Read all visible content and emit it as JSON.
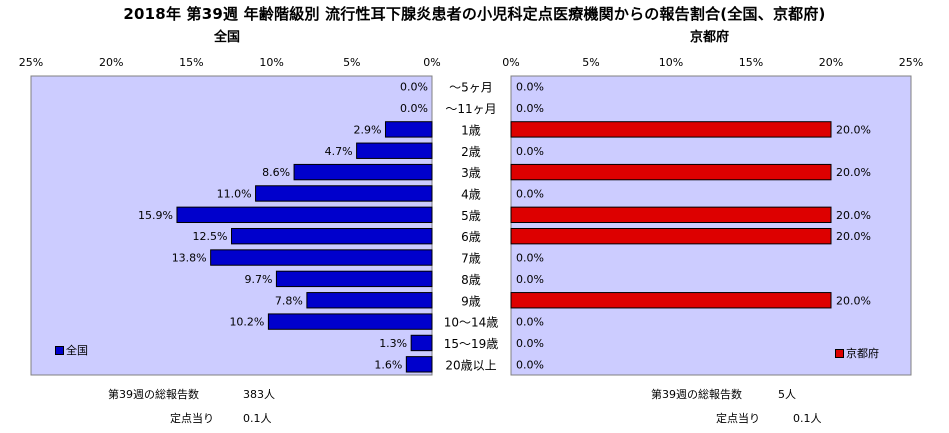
{
  "title": "2018年 第39週 年齢階級別 流行性耳下腺炎患者の小児科定点医療機関からの報告割合(全国、京都府)",
  "colors": {
    "national": "#0000cc",
    "kyoto": "#dd0000",
    "plot_bg": "#ccccff",
    "border": "#000000"
  },
  "chart_data": [
    {
      "type": "bar",
      "orientation": "horizontal",
      "direction": "right-to-left",
      "title": "全国",
      "categories": [
        "～5ヶ月",
        "～11ヶ月",
        "1歳",
        "2歳",
        "3歳",
        "4歳",
        "5歳",
        "6歳",
        "7歳",
        "8歳",
        "9歳",
        "10～14歳",
        "15～19歳",
        "20歳以上"
      ],
      "series": [
        {
          "name": "全国",
          "values": [
            0.0,
            0.0,
            2.9,
            4.7,
            8.6,
            11.0,
            15.9,
            12.5,
            13.8,
            9.7,
            7.8,
            10.2,
            1.3,
            1.6
          ],
          "labels": [
            "0.0%",
            "0.0%",
            "2.9%",
            "4.7%",
            "8.6%",
            "11.0%",
            "15.9%",
            "12.5%",
            "13.8%",
            "9.7%",
            "7.8%",
            "10.2%",
            "1.3%",
            "1.6%"
          ]
        }
      ],
      "xlim": [
        0,
        25
      ],
      "ticks": [
        "0%",
        "5%",
        "10%",
        "15%",
        "20%",
        "25%"
      ],
      "legend_position": "bottom-left",
      "grid": false
    },
    {
      "type": "bar",
      "orientation": "horizontal",
      "direction": "left-to-right",
      "title": "京都府",
      "categories": [
        "～5ヶ月",
        "～11ヶ月",
        "1歳",
        "2歳",
        "3歳",
        "4歳",
        "5歳",
        "6歳",
        "7歳",
        "8歳",
        "9歳",
        "10～14歳",
        "15～19歳",
        "20歳以上"
      ],
      "series": [
        {
          "name": "京都府",
          "values": [
            0.0,
            0.0,
            20.0,
            0.0,
            20.0,
            0.0,
            20.0,
            20.0,
            0.0,
            0.0,
            20.0,
            0.0,
            0.0,
            0.0
          ],
          "labels": [
            "0.0%",
            "0.0%",
            "20.0%",
            "0.0%",
            "20.0%",
            "0.0%",
            "20.0%",
            "20.0%",
            "0.0%",
            "0.0%",
            "20.0%",
            "0.0%",
            "0.0%",
            "0.0%"
          ]
        }
      ],
      "xlim": [
        0,
        25
      ],
      "ticks": [
        "0%",
        "5%",
        "10%",
        "15%",
        "20%",
        "25%"
      ],
      "legend_position": "bottom-right",
      "grid": false
    }
  ],
  "footer": {
    "national": {
      "total_label": "第39週の総報告数",
      "total_value": "383人",
      "per_label": "定点当り",
      "per_value": "0.1人"
    },
    "kyoto": {
      "total_label": "第39週の総報告数",
      "total_value": "5人",
      "per_label": "定点当り",
      "per_value": "0.1人"
    }
  }
}
